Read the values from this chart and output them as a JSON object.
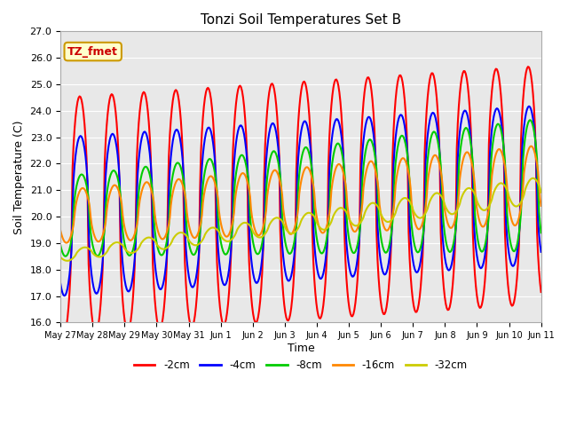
{
  "title": "Tonzi Soil Temperatures Set B",
  "xlabel": "Time",
  "ylabel": "Soil Temperature (C)",
  "ylim": [
    16.0,
    27.0
  ],
  "yticks": [
    16.0,
    17.0,
    18.0,
    19.0,
    20.0,
    21.0,
    22.0,
    23.0,
    24.0,
    25.0,
    26.0,
    27.0
  ],
  "xtick_labels": [
    "May 27",
    "May 28",
    "May 29",
    "May 30",
    "May 31",
    "Jun 1",
    "Jun 2",
    "Jun 3",
    "Jun 4",
    "Jun 5",
    "Jun 6",
    "Jun 7",
    "Jun 8",
    "Jun 9",
    "Jun 10",
    "Jun 11"
  ],
  "legend_labels": [
    "-2cm",
    "-4cm",
    "-8cm",
    "-16cm",
    "-32cm"
  ],
  "legend_colors": [
    "#ff0000",
    "#0000ff",
    "#00cc00",
    "#ff8800",
    "#cccc00"
  ],
  "annotation_text": "TZ_fmet",
  "annotation_color": "#cc0000",
  "annotation_bg": "#ffffcc",
  "annotation_border": "#cc9900",
  "bg_color": "#e8e8e8",
  "line_width": 1.5,
  "n_points": 480
}
